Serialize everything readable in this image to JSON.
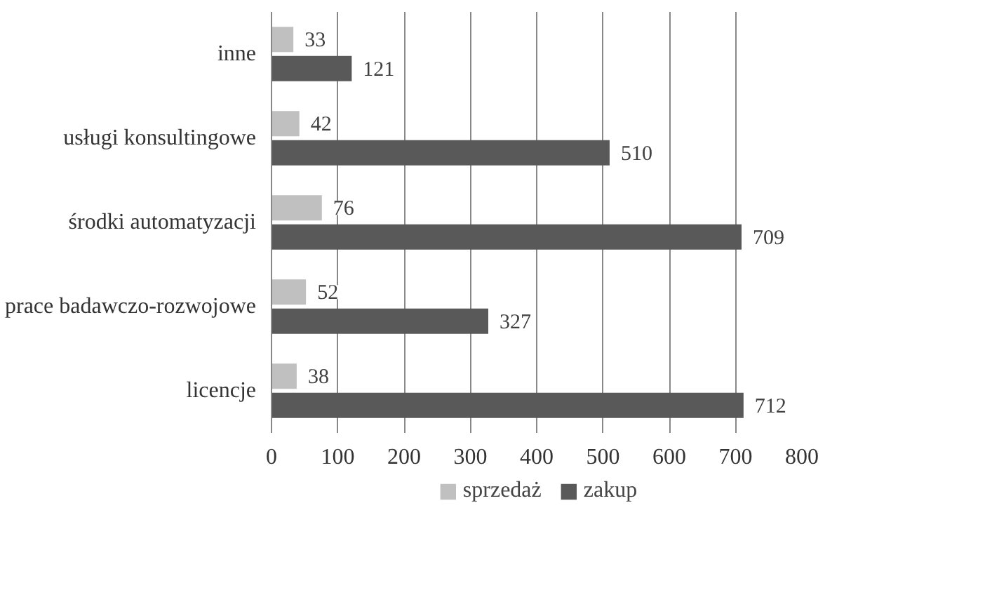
{
  "chart_data": {
    "type": "bar",
    "orientation": "horizontal",
    "categories": [
      "inne",
      "usługi konsultingowe",
      "środki automatyzacji",
      "prace badawczo-rozwojowe",
      "licencje"
    ],
    "series": [
      {
        "name": "sprzedaż",
        "color": "#c0c0c0",
        "values": [
          33,
          42,
          76,
          52,
          38
        ]
      },
      {
        "name": "zakup",
        "color": "#595959",
        "values": [
          121,
          510,
          709,
          327,
          712
        ]
      }
    ],
    "xlim": [
      0,
      800
    ],
    "xticks": [
      0,
      100,
      200,
      300,
      400,
      500,
      600,
      700,
      800
    ],
    "grid": "x",
    "legend": "bottom",
    "data_labels": true
  }
}
